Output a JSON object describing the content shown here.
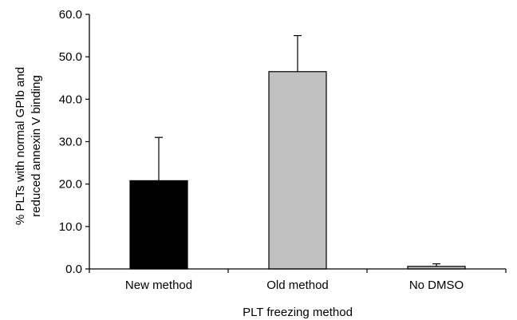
{
  "chart_data": {
    "type": "bar",
    "xlabel": "PLT freezing method",
    "ylabel_lines": [
      "% PLTs with normal GPIb and",
      "reduced annexin V binding"
    ],
    "ylim": [
      0,
      60
    ],
    "yticks": [
      "0.0",
      "10.0",
      "20.0",
      "30.0",
      "40.0",
      "50.0",
      "60.0"
    ],
    "categories": [
      "New method",
      "Old method",
      "No DMSO"
    ],
    "values": [
      20.8,
      46.5,
      0.6
    ],
    "error_upper": [
      31.0,
      55.0,
      1.2
    ],
    "colors": [
      "#000000",
      "#c0c0c0",
      "#c0c0c0"
    ],
    "grid": false,
    "legend": "none"
  }
}
